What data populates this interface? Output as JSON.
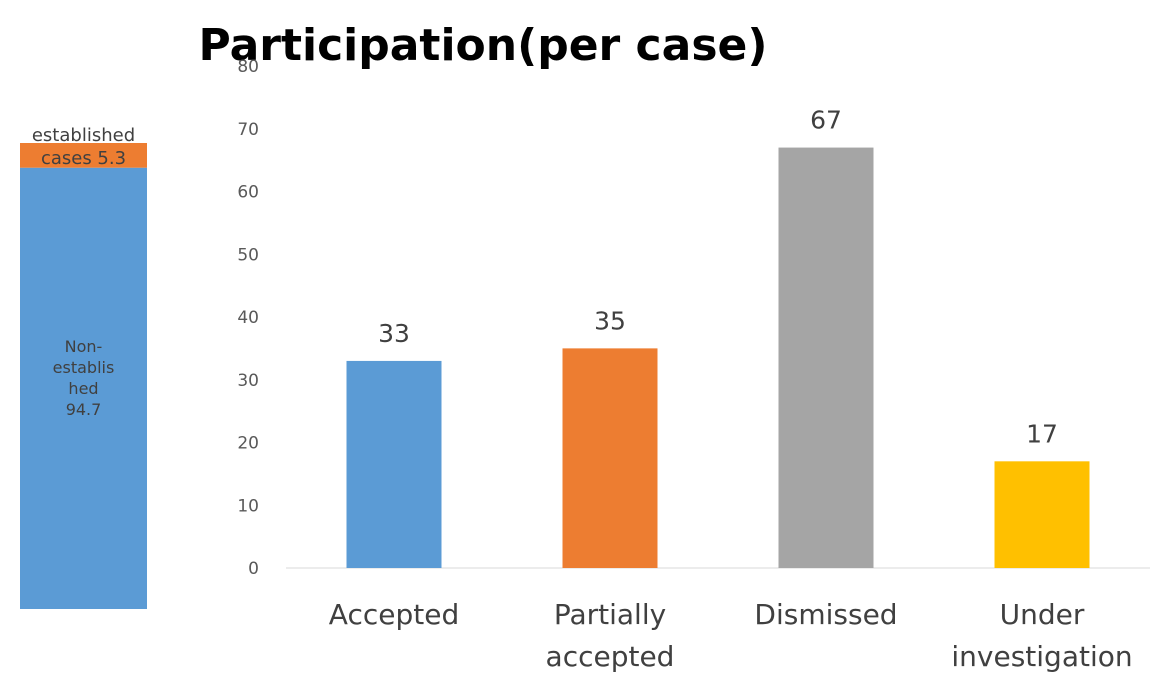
{
  "chart_data": [
    {
      "type": "bar",
      "stacked": true,
      "series": [
        {
          "name": "Non-established",
          "value": 94.7,
          "color": "#5B9BD5",
          "label_lines": [
            "Non-",
            "establis",
            "hed",
            "94.7"
          ]
        },
        {
          "name": "established cases",
          "value": 5.3,
          "color": "#ED7D31",
          "label_lines": [
            "established",
            "cases 5.3"
          ]
        }
      ],
      "total": 100
    },
    {
      "type": "bar",
      "title": "Participation(per case)",
      "categories": [
        {
          "lines": [
            "Accepted"
          ]
        },
        {
          "lines": [
            "Partially",
            "accepted"
          ]
        },
        {
          "lines": [
            "Dismissed"
          ]
        },
        {
          "lines": [
            "Under",
            "investigation"
          ]
        }
      ],
      "values": [
        33,
        35,
        67,
        17
      ],
      "colors": [
        "#5B9BD5",
        "#ED7D31",
        "#A5A5A5",
        "#FFC000"
      ],
      "ylim": [
        0,
        80
      ],
      "yticks": [
        0,
        10,
        20,
        30,
        40,
        50,
        60,
        70,
        80
      ],
      "grid": false,
      "legend": "none"
    }
  ]
}
